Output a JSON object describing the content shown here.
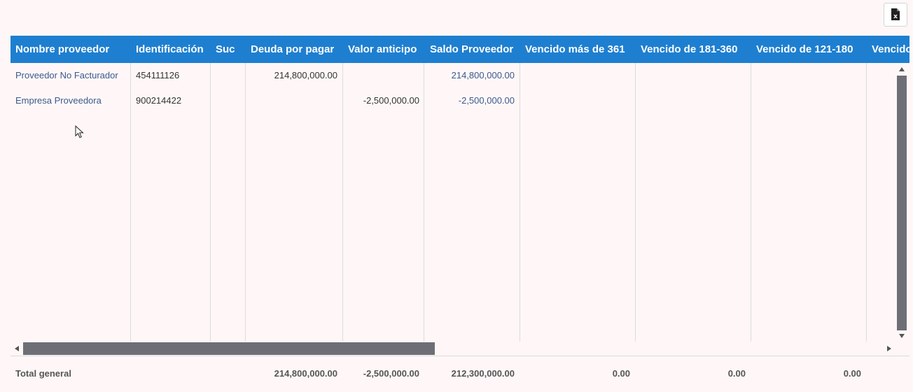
{
  "toolbar": {
    "export_icon": "excel-export-icon",
    "export_glyph": "x"
  },
  "table": {
    "columns": [
      "Nombre proveedor",
      "Identificación",
      "Suc",
      "Deuda por pagar",
      "Valor anticipo",
      "Saldo Proveedor",
      "Vencido más de 361",
      "Vencido de 181-360",
      "Vencido de 121-180",
      "Vencido"
    ],
    "rows": [
      {
        "nombre": "Proveedor No Facturador",
        "identificacion": "454111126",
        "suc": "",
        "deuda": "214,800,000.00",
        "anticipo": "",
        "saldo": "214,800,000.00"
      },
      {
        "nombre": "Empresa Proveedora",
        "identificacion": "900214422",
        "suc": "",
        "deuda": "",
        "anticipo": "-2,500,000.00",
        "saldo": "-2,500,000.00"
      }
    ],
    "footer": {
      "label": "Total general",
      "deuda": "214,800,000.00",
      "anticipo": "-2,500,000.00",
      "saldo": "212,300,000.00",
      "vencido_361": "0.00",
      "vencido_181_360": "0.00",
      "vencido_121_180": "0.00"
    }
  },
  "colors": {
    "header_bg": "#1e7fd0",
    "link": "#3a5a8c",
    "scroll_thumb": "#6e6e76",
    "page_bg": "#fff7f7"
  }
}
